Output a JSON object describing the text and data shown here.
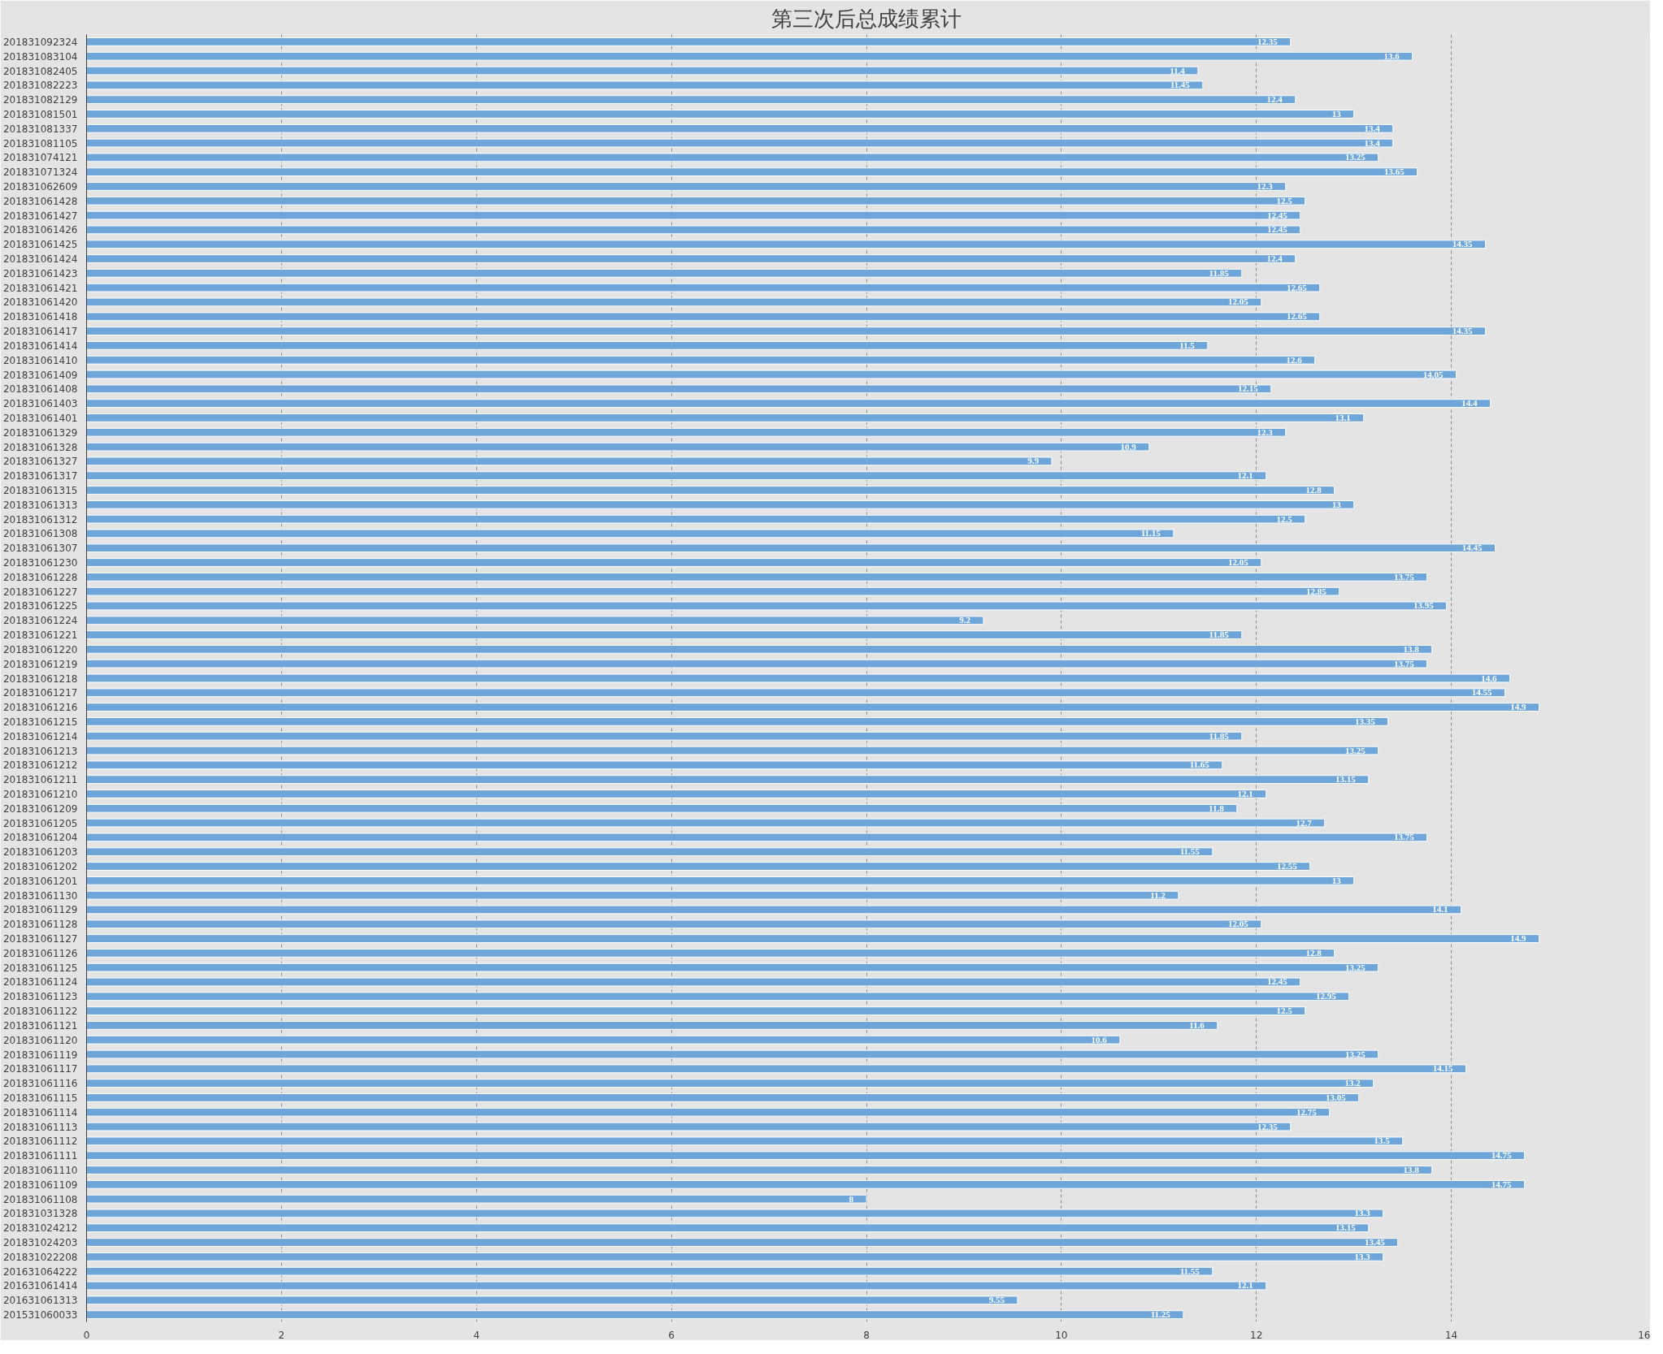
{
  "chart_data": {
    "type": "bar",
    "orientation": "horizontal",
    "title": "第三次后总成绩累计",
    "color": "#6fa6d9",
    "data_labels": true,
    "grid": "x",
    "xlim": [
      0,
      16
    ],
    "xticks": [
      0,
      2,
      4,
      6,
      8,
      10,
      12,
      14,
      16
    ],
    "categories": [
      "201831092324",
      "201831083104",
      "201831082405",
      "201831082223",
      "201831082129",
      "201831081501",
      "201831081337",
      "201831081105",
      "201831074121",
      "201831071324",
      "201831062609",
      "201831061428",
      "201831061427",
      "201831061426",
      "201831061425",
      "201831061424",
      "201831061423",
      "201831061421",
      "201831061420",
      "201831061418",
      "201831061417",
      "201831061414",
      "201831061410",
      "201831061409",
      "201831061408",
      "201831061403",
      "201831061401",
      "201831061329",
      "201831061328",
      "201831061327",
      "201831061317",
      "201831061315",
      "201831061313",
      "201831061312",
      "201831061308",
      "201831061307",
      "201831061230",
      "201831061228",
      "201831061227",
      "201831061225",
      "201831061224",
      "201831061221",
      "201831061220",
      "201831061219",
      "201831061218",
      "201831061217",
      "201831061216",
      "201831061215",
      "201831061214",
      "201831061213",
      "201831061212",
      "201831061211",
      "201831061210",
      "201831061209",
      "201831061205",
      "201831061204",
      "201831061203",
      "201831061202",
      "201831061201",
      "201831061130",
      "201831061129",
      "201831061128",
      "201831061127",
      "201831061126",
      "201831061125",
      "201831061124",
      "201831061123",
      "201831061122",
      "201831061121",
      "201831061120",
      "201831061119",
      "201831061117",
      "201831061116",
      "201831061115",
      "201831061114",
      "201831061113",
      "201831061112",
      "201831061111",
      "201831061110",
      "201831061109",
      "201831061108",
      "201831031328",
      "201831024212",
      "201831024203",
      "201831022208",
      "201631064222",
      "201631061414",
      "201631061313",
      "201531060033"
    ],
    "values": [
      12.35,
      13.6,
      11.4,
      11.45,
      12.4,
      13,
      13.4,
      13.4,
      13.25,
      13.65,
      12.3,
      12.5,
      12.45,
      12.45,
      14.35,
      12.4,
      11.85,
      12.65,
      12.05,
      12.65,
      14.35,
      11.5,
      12.6,
      14.05,
      12.15,
      14.4,
      13.1,
      12.3,
      10.9,
      9.9,
      12.1,
      12.8,
      13,
      12.5,
      11.15,
      14.45,
      12.05,
      13.75,
      12.85,
      13.95,
      9.2,
      11.85,
      13.8,
      13.75,
      14.6,
      14.55,
      14.9,
      13.35,
      11.85,
      13.25,
      11.65,
      13.15,
      12.1,
      11.8,
      12.7,
      13.75,
      11.55,
      12.55,
      13,
      11.2,
      14.1,
      12.05,
      14.9,
      12.8,
      13.25,
      12.45,
      12.95,
      12.5,
      11.6,
      10.6,
      13.25,
      14.15,
      13.2,
      13.05,
      12.75,
      12.35,
      13.5,
      14.75,
      13.8,
      14.75,
      8,
      13.3,
      13.15,
      13.45,
      13.3,
      11.55,
      12.1,
      9.55,
      11.25
    ]
  }
}
